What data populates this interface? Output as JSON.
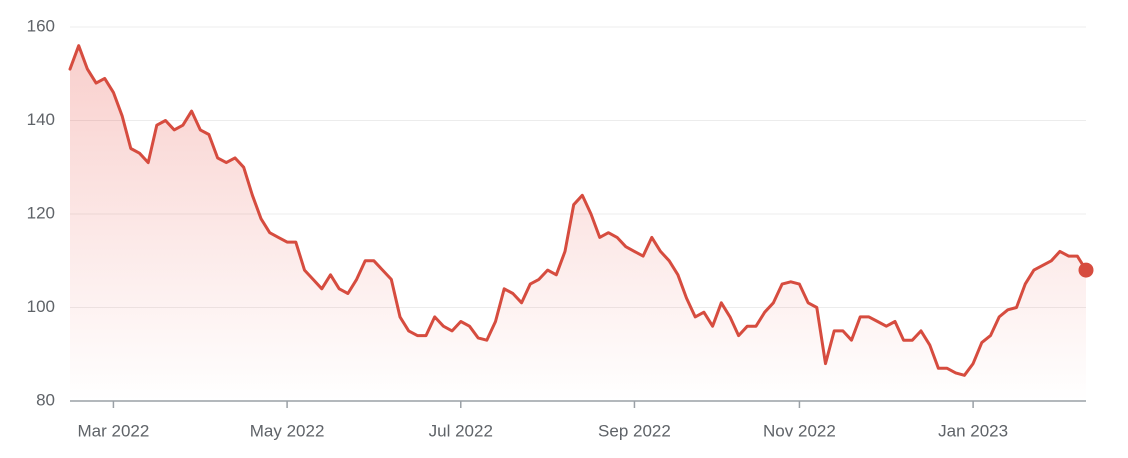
{
  "chart_data": {
    "type": "line",
    "color": "#d64c3f",
    "ylim": [
      80,
      160
    ],
    "yticks": [
      80,
      100,
      120,
      140,
      160
    ],
    "grid": true,
    "categories": [
      null,
      null,
      null,
      null,
      null,
      "Mar 2022",
      null,
      null,
      null,
      null,
      null,
      null,
      null,
      null,
      null,
      null,
      null,
      null,
      null,
      null,
      null,
      null,
      null,
      null,
      null,
      "May 2022",
      null,
      null,
      null,
      null,
      null,
      null,
      null,
      null,
      null,
      null,
      null,
      null,
      null,
      null,
      null,
      null,
      null,
      null,
      null,
      "Jul 2022",
      null,
      null,
      null,
      null,
      null,
      null,
      null,
      null,
      null,
      null,
      null,
      null,
      null,
      null,
      null,
      null,
      null,
      null,
      null,
      "Sep 2022",
      null,
      null,
      null,
      null,
      null,
      null,
      null,
      null,
      null,
      null,
      null,
      null,
      null,
      null,
      null,
      null,
      null,
      null,
      "Nov 2022",
      null,
      null,
      null,
      null,
      null,
      null,
      null,
      null,
      null,
      null,
      null,
      null,
      null,
      null,
      null,
      null,
      null,
      null,
      null,
      "Jan 2023",
      null,
      null,
      null,
      null,
      null,
      null,
      null,
      null,
      null,
      null,
      null,
      null,
      null
    ],
    "values": [
      151,
      156,
      151,
      148,
      149,
      146,
      141,
      134,
      133,
      131,
      139,
      140,
      138,
      139,
      142,
      138,
      137,
      132,
      131,
      132,
      130,
      124,
      119,
      116,
      115,
      114,
      114,
      108,
      106,
      104,
      107,
      104,
      103,
      106,
      110,
      110,
      108,
      106,
      98,
      95,
      94,
      94,
      98,
      96,
      95,
      97,
      96,
      93.5,
      93,
      97,
      104,
      103,
      101,
      105,
      106,
      108,
      107,
      112,
      122,
      124,
      120,
      115,
      116,
      115,
      113,
      112,
      111,
      115,
      112,
      110,
      107,
      102,
      98,
      99,
      96,
      101,
      98,
      94,
      96,
      96,
      99,
      101,
      105,
      105.5,
      105,
      101,
      100,
      88,
      95,
      95,
      93,
      98,
      98,
      97,
      96,
      97,
      93,
      93,
      95,
      92,
      87,
      87,
      86,
      85.5,
      88,
      92.5,
      94,
      98,
      99.5,
      100,
      105,
      108,
      109,
      110,
      112,
      111,
      111,
      108
    ]
  }
}
